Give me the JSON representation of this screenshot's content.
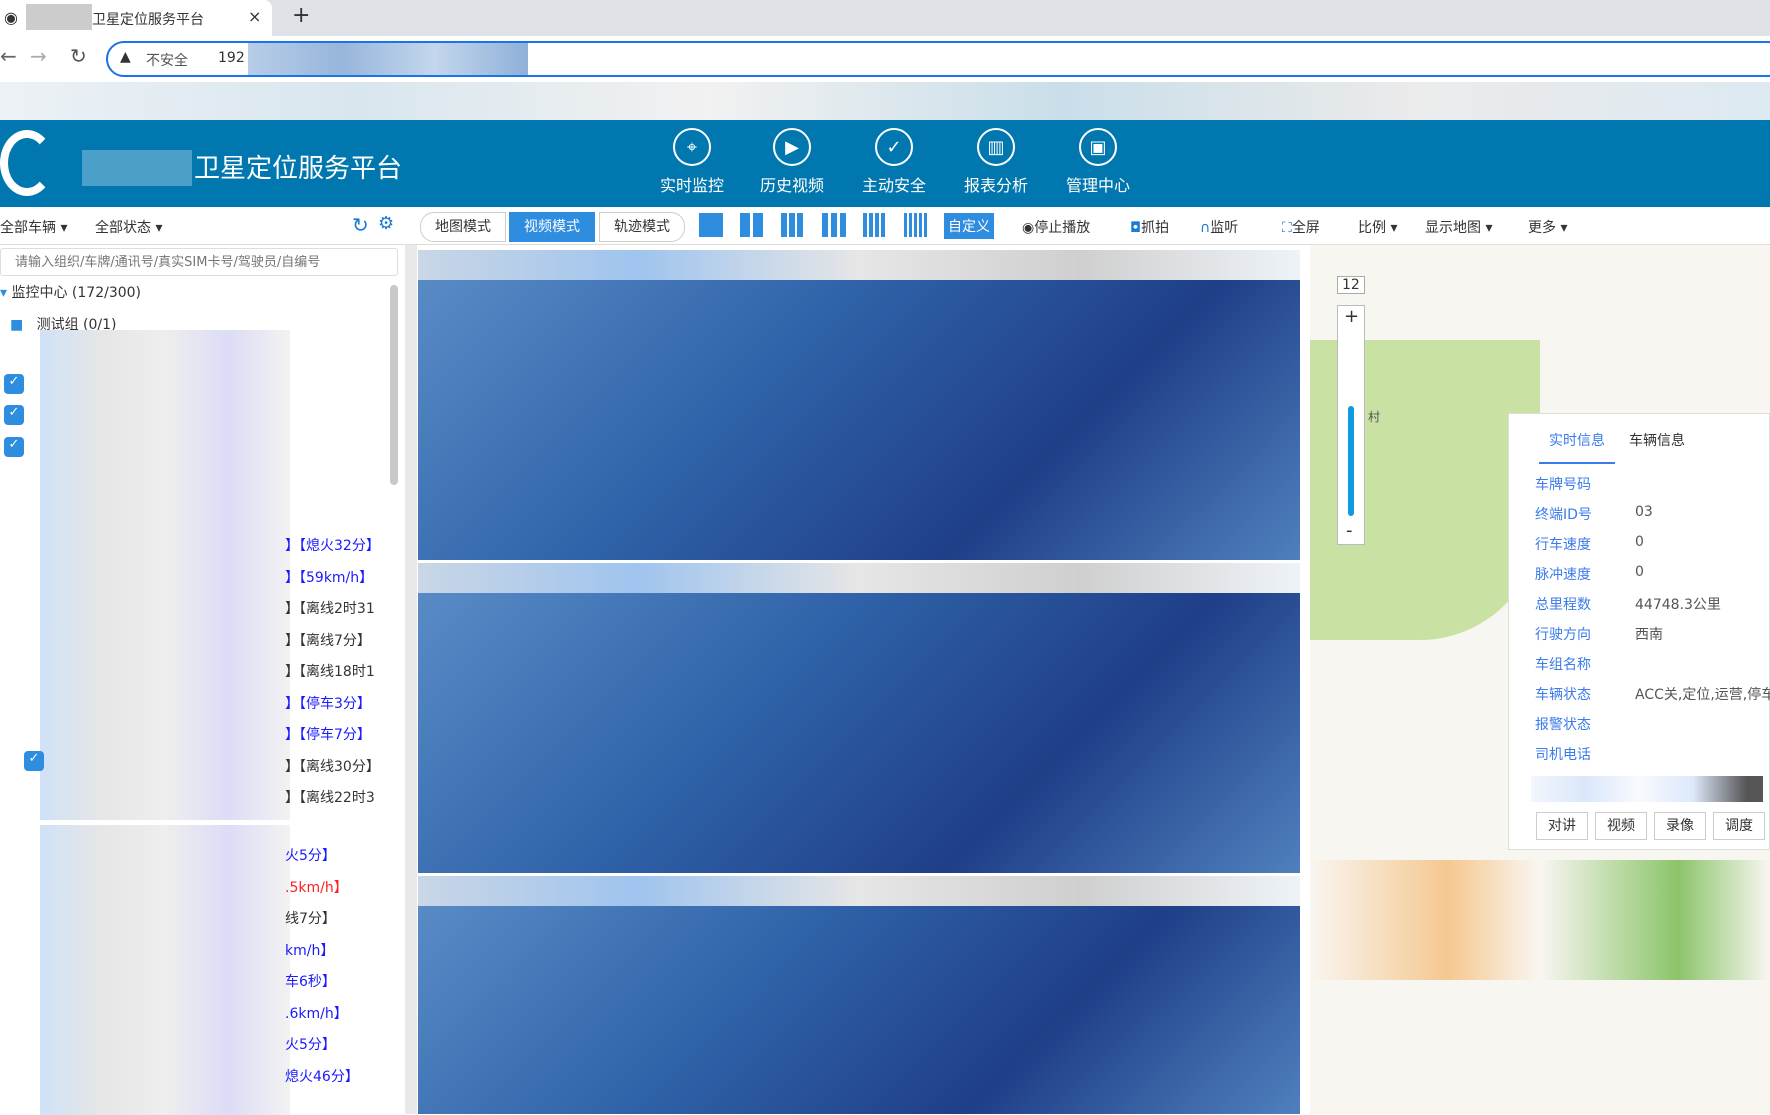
{
  "browser": {
    "tab_title": "卫星定位服务平台",
    "close": "×",
    "new_tab": "+",
    "security": "不安全",
    "url_prefix": "192",
    "back": "←",
    "forward": "→",
    "reload": "C"
  },
  "header": {
    "title": "卫星定位服务平台",
    "nav": [
      {
        "label": "实时监控",
        "icon": "location-pin-icon"
      },
      {
        "label": "历史视频",
        "icon": "video-monitor-icon"
      },
      {
        "label": "主动安全",
        "icon": "shield-icon"
      },
      {
        "label": "报表分析",
        "icon": "chart-icon"
      },
      {
        "label": "管理中心",
        "icon": "computer-icon"
      }
    ]
  },
  "left": {
    "filter_vehicles": "全部车辆",
    "filter_status": "全部状态",
    "search_placeholder": "请输入组织/车牌/通讯号/真实SIM卡号/驾驶员/自编号",
    "root": "监控中心 (172/300)",
    "group": "测试组 (0/1)",
    "statuses": [
      {
        "text": "】【熄火32分】",
        "color": "#1a1aff"
      },
      {
        "text": "】【59km/h】",
        "color": "#1a1aff"
      },
      {
        "text": "】【离线2时31",
        "color": "#333"
      },
      {
        "text": "】【离线7分】",
        "color": "#333"
      },
      {
        "text": "】【离线18时1",
        "color": "#333"
      },
      {
        "text": "】【停车3分】",
        "color": "#1a1aff"
      },
      {
        "text": "】【停车7分】",
        "color": "#1a1aff"
      },
      {
        "text": "】【离线30分】",
        "color": "#333"
      },
      {
        "text": "】【离线22时3",
        "color": "#333"
      }
    ],
    "statuses2": [
      {
        "text": "火5分】",
        "color": "#1a1aff"
      },
      {
        "text": ".5km/h】",
        "color": "#ff2020"
      },
      {
        "text": "线7分】",
        "color": "#333"
      },
      {
        "text": "km/h】",
        "color": "#1a1aff"
      },
      {
        "text": "车6秒】",
        "color": "#1a1aff"
      },
      {
        "text": ".6km/h】",
        "color": "#1a1aff"
      },
      {
        "text": "火5分】",
        "color": "#1a1aff"
      },
      {
        "text": "熄火46分】",
        "color": "#1a1aff"
      }
    ]
  },
  "toolbar": {
    "modes": [
      "地图模式",
      "视频模式",
      "轨迹模式"
    ],
    "active_mode": "视频模式",
    "custom": "自定义",
    "stop": "停止播放",
    "snapshot": "抓拍",
    "listen": "监听",
    "fullscreen": "全屏",
    "ratio": "比例",
    "show_map": "显示地图",
    "more": "更多"
  },
  "map": {
    "zoom_level": "12",
    "zoom_in": "+",
    "zoom_out": "-",
    "place": "村"
  },
  "info": {
    "tabs": [
      "实时信息",
      "车辆信息"
    ],
    "active_tab": "实时信息",
    "fields": [
      {
        "label": "车牌号码",
        "value": ""
      },
      {
        "label": "终端ID号",
        "value": "03"
      },
      {
        "label": "行车速度",
        "value": "0"
      },
      {
        "label": "脉冲速度",
        "value": "0"
      },
      {
        "label": "总里程数",
        "value": "44748.3公里"
      },
      {
        "label": "行驶方向",
        "value": "西南"
      },
      {
        "label": "车组名称",
        "value": ""
      },
      {
        "label": "车辆状态",
        "value": "ACC关,定位,运营,停车"
      },
      {
        "label": "报警状态",
        "value": ""
      },
      {
        "label": "司机电话",
        "value": ""
      }
    ],
    "buttons": [
      "对讲",
      "视频",
      "录像",
      "调度"
    ]
  },
  "colors": {
    "header": "#0077ae",
    "accent": "#2f8de0",
    "label": "#3b7bea"
  }
}
